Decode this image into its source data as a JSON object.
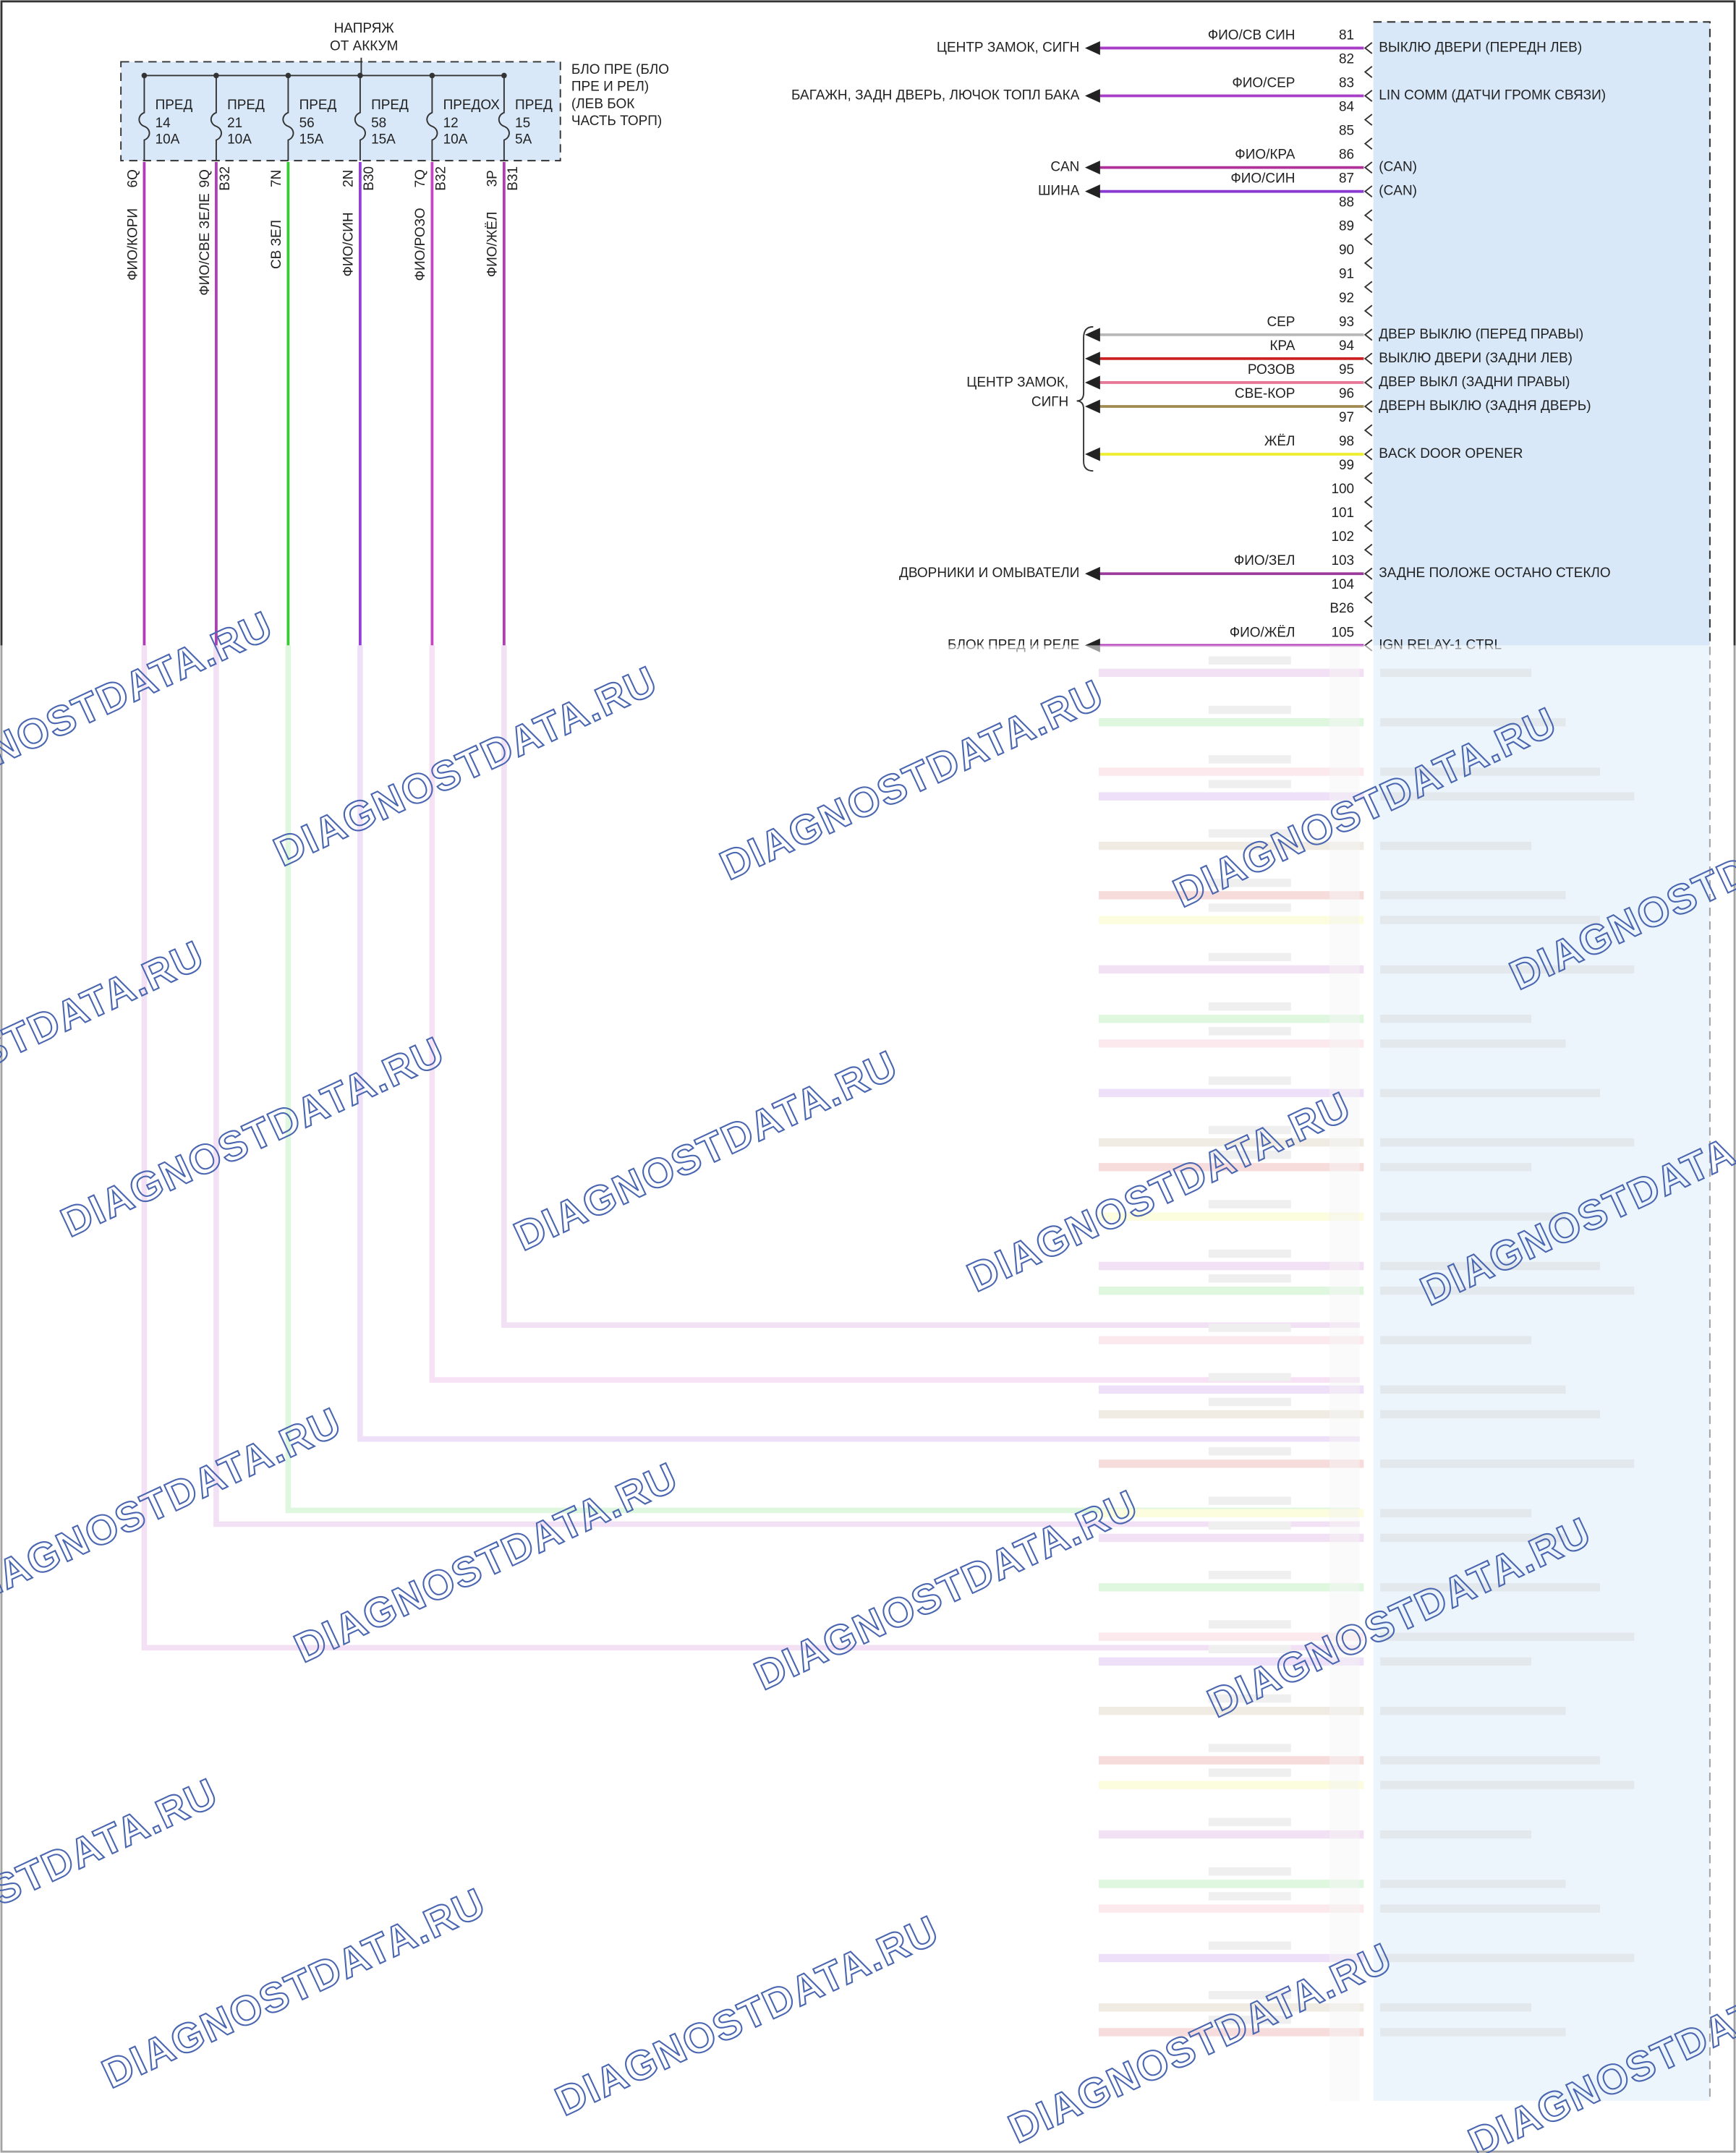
{
  "supply": [
    "НАПРЯЖ",
    "ОТ АККУМ"
  ],
  "fuse_block": [
    "БЛО ПРЕ (БЛО",
    "ПРЕ И РЕЛ)",
    "(ЛЕВ БОК",
    "ЧАСТЬ ТОРП)"
  ],
  "fuses": [
    {
      "name": "ПРЕД",
      "number": "14",
      "rating": "10А",
      "pin": "6Q",
      "wire": "ФИО/КОРИ",
      "color": "#b23bb8"
    },
    {
      "name": "ПРЕД",
      "number": "21",
      "rating": "10А",
      "pin": "9Q",
      "connector": "B32",
      "wire": "ФИО/СВЕ ЗЕЛЕ",
      "color": "#b23bb8"
    },
    {
      "name": "ПРЕД",
      "number": "56",
      "rating": "15А",
      "pin": "7N",
      "wire": "СВ ЗЕЛ",
      "color": "#33cc33"
    },
    {
      "name": "ПРЕД",
      "number": "58",
      "rating": "15А",
      "pin": "2N",
      "connector": "B30",
      "wire": "ФИО/СИН",
      "color": "#9440d8"
    },
    {
      "name": "ПРЕДОХ",
      "number": "12",
      "rating": "10А",
      "pin": "7Q",
      "connector": "B32",
      "wire": "ФИО/РОЗО",
      "color": "#c844c0"
    },
    {
      "name": "ПРЕД",
      "number": "15",
      "rating": "5А",
      "pin": "3P",
      "connector": "B31",
      "wire": "ФИО/ЖЁЛ",
      "color": "#b23bb8"
    }
  ],
  "pins": [
    {
      "pin": "81",
      "wire": "ФИО/СВ СИН",
      "label": "ВЫКЛЮ ДВЕРИ (ПЕРЕДН ЛЕВ)",
      "dest": "ЦЕНТР ЗАМОК, СИГН",
      "color": "#a83ec8"
    },
    {
      "pin": "82"
    },
    {
      "pin": "83",
      "wire": "ФИО/СЕР",
      "label": "LIN COMM (ДАТЧИ ГРОМК СВЯЗИ)",
      "dest": "БАГАЖН, ЗАДН ДВЕРЬ, ЛЮЧОК ТОПЛ БАКА",
      "color": "#a83ec8"
    },
    {
      "pin": "84"
    },
    {
      "pin": "85"
    },
    {
      "pin": "86",
      "wire": "ФИО/КРА",
      "label": "(CAN)",
      "dest": "CAN",
      "color": "#b0309a"
    },
    {
      "pin": "87",
      "wire": "ФИО/СИН",
      "label": "(CAN)",
      "dest": "ШИНА",
      "color": "#8a3ad0"
    },
    {
      "pin": "88"
    },
    {
      "pin": "89"
    },
    {
      "pin": "90"
    },
    {
      "pin": "91"
    },
    {
      "pin": "92"
    },
    {
      "pin": "93",
      "wire": "СЕР",
      "label": "ДВЕР ВЫКЛЮ (ПЕРЕД ПРАВЫ)",
      "color": "#b8b8b8"
    },
    {
      "pin": "94",
      "wire": "КРА",
      "label": "ВЫКЛЮ ДВЕРИ (ЗАДНИ ЛЕВ)",
      "color": "#cc2222"
    },
    {
      "pin": "95",
      "wire": "РОЗОВ",
      "label": "ДВЕР ВЫКЛ (ЗАДНИ ПРАВЫ)",
      "color": "#e87898"
    },
    {
      "pin": "96",
      "wire": "СВЕ-КОР",
      "label": "ДВЕРН ВЫКЛЮ (ЗАДНЯ ДВЕРЬ)",
      "color": "#a08a50"
    },
    {
      "pin": "97"
    },
    {
      "pin": "98",
      "wire": "ЖЁЛ",
      "label": "BACK DOOR OPENER",
      "color": "#eeee33"
    },
    {
      "pin": "99"
    },
    {
      "pin": "100"
    },
    {
      "pin": "101"
    },
    {
      "pin": "102"
    },
    {
      "pin": "103",
      "wire": "ФИО/ЗЕЛ",
      "label": "ЗАДНЕ ПОЛОЖЕ ОСТАНО СТЕКЛО",
      "dest": "ДВОРНИКИ И ОМЫВАТЕЛИ",
      "color": "#9a3a9a"
    },
    {
      "pin": "104"
    },
    {
      "pin": "B26"
    },
    {
      "pin": "105",
      "wire": "ФИО/ЖЁЛ",
      "label": "IGN RELAY-1 CTRL",
      "dest": "БЛОК ПРЕД И РЕЛЕ",
      "color": "#b23bb8"
    }
  ],
  "lock_group": [
    "ЦЕНТР ЗАМОК,",
    "СИГН"
  ],
  "watermark": "DIAGNOSTDATA.RU"
}
